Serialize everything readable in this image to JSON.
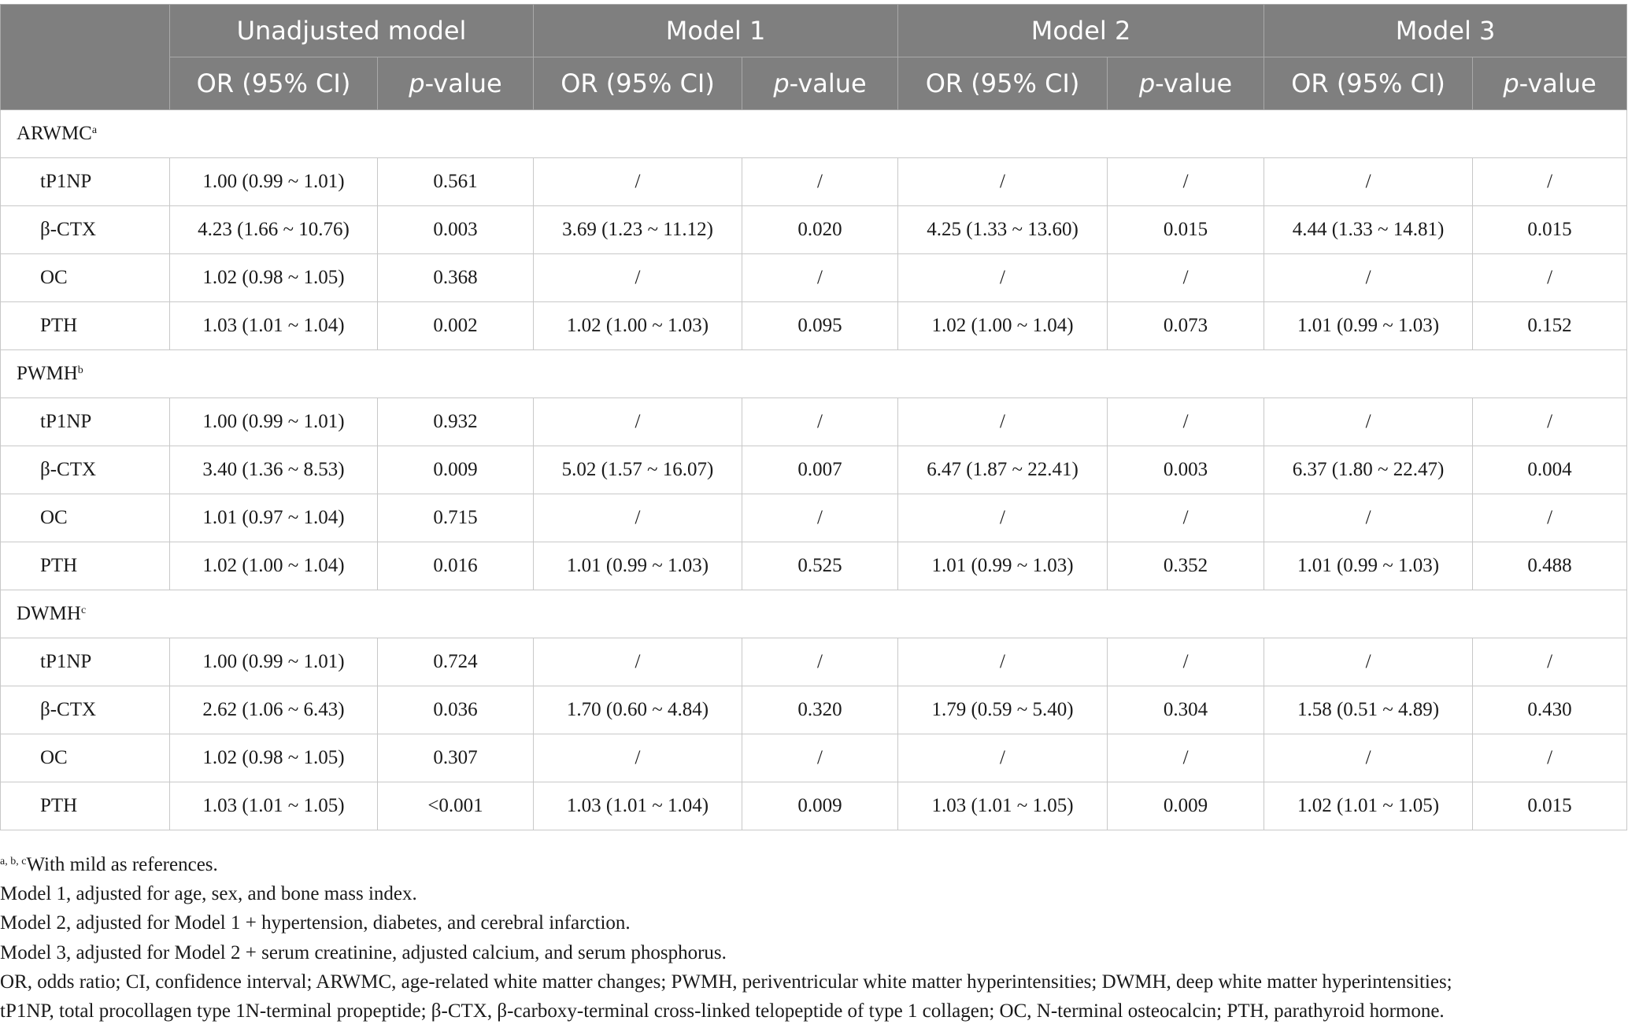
{
  "header": {
    "models": [
      "Unadjusted model",
      "Model 1",
      "Model 2",
      "Model 3"
    ],
    "or_label": "OR (95% CI)",
    "p_prefix": "p",
    "p_suffix": "-value"
  },
  "groups": [
    {
      "name": "ARWMC",
      "sup": "a",
      "rows": [
        {
          "marker": "tP1NP",
          "cells": [
            "1.00 (0.99 ~ 1.01)",
            "0.561",
            "/",
            "/",
            "/",
            "/",
            "/",
            "/"
          ]
        },
        {
          "marker": "β-CTX",
          "cells": [
            "4.23 (1.66 ~ 10.76)",
            "0.003",
            "3.69 (1.23 ~ 11.12)",
            "0.020",
            "4.25 (1.33 ~ 13.60)",
            "0.015",
            "4.44 (1.33 ~ 14.81)",
            "0.015"
          ]
        },
        {
          "marker": "OC",
          "cells": [
            "1.02 (0.98 ~ 1.05)",
            "0.368",
            "/",
            "/",
            "/",
            "/",
            "/",
            "/"
          ]
        },
        {
          "marker": "PTH",
          "cells": [
            "1.03 (1.01 ~ 1.04)",
            "0.002",
            "1.02 (1.00 ~ 1.03)",
            "0.095",
            "1.02 (1.00 ~ 1.04)",
            "0.073",
            "1.01 (0.99 ~ 1.03)",
            "0.152"
          ]
        }
      ]
    },
    {
      "name": "PWMH",
      "sup": "b",
      "rows": [
        {
          "marker": "tP1NP",
          "cells": [
            "1.00 (0.99 ~ 1.01)",
            "0.932",
            "/",
            "/",
            "/",
            "/",
            "/",
            "/"
          ]
        },
        {
          "marker": "β-CTX",
          "cells": [
            "3.40 (1.36 ~ 8.53)",
            "0.009",
            "5.02 (1.57 ~ 16.07)",
            "0.007",
            "6.47 (1.87 ~ 22.41)",
            "0.003",
            "6.37 (1.80 ~ 22.47)",
            "0.004"
          ]
        },
        {
          "marker": "OC",
          "cells": [
            "1.01 (0.97 ~ 1.04)",
            "0.715",
            "/",
            "/",
            "/",
            "/",
            "/",
            "/"
          ]
        },
        {
          "marker": "PTH",
          "cells": [
            "1.02 (1.00 ~ 1.04)",
            "0.016",
            "1.01 (0.99 ~ 1.03)",
            "0.525",
            "1.01 (0.99 ~ 1.03)",
            "0.352",
            "1.01 (0.99 ~ 1.03)",
            "0.488"
          ]
        }
      ]
    },
    {
      "name": "DWMH",
      "sup": "c",
      "rows": [
        {
          "marker": "tP1NP",
          "cells": [
            "1.00 (0.99 ~ 1.01)",
            "0.724",
            "/",
            "/",
            "/",
            "/",
            "/",
            "/"
          ]
        },
        {
          "marker": "β-CTX",
          "cells": [
            "2.62 (1.06 ~ 6.43)",
            "0.036",
            "1.70 (0.60 ~ 4.84)",
            "0.320",
            "1.79 (0.59 ~ 5.40)",
            "0.304",
            "1.58 (0.51 ~ 4.89)",
            "0.430"
          ]
        },
        {
          "marker": "OC",
          "cells": [
            "1.02 (0.98 ~ 1.05)",
            "0.307",
            "/",
            "/",
            "/",
            "/",
            "/",
            "/"
          ]
        },
        {
          "marker": "PTH",
          "cells": [
            "1.03 (1.01 ~ 1.05)",
            "<0.001",
            "1.03 (1.01 ~ 1.04)",
            "0.009",
            "1.03 (1.01 ~ 1.05)",
            "0.009",
            "1.02 (1.01 ~ 1.05)",
            "0.015"
          ]
        }
      ]
    }
  ],
  "footnotes": {
    "ref_sup": "a, b, c",
    "ref_text": "With mild as references.",
    "lines": [
      "Model 1, adjusted for age, sex, and bone mass index.",
      "Model 2, adjusted for Model 1 + hypertension, diabetes, and cerebral infarction.",
      "Model 3, adjusted for Model 2 + serum creatinine, adjusted calcium, and serum phosphorus.",
      "OR, odds ratio; CI, confidence interval; ARWMC, age-related white matter changes; PWMH, periventricular white matter hyperintensities; DWMH, deep white matter hyperintensities;",
      "tP1NP, total procollagen type 1N-terminal propeptide; β-CTX, β-carboxy-terminal cross-linked telopeptide of type 1 collagen; OC, N-terminal osteocalcin; PTH, parathyroid hormone."
    ]
  }
}
